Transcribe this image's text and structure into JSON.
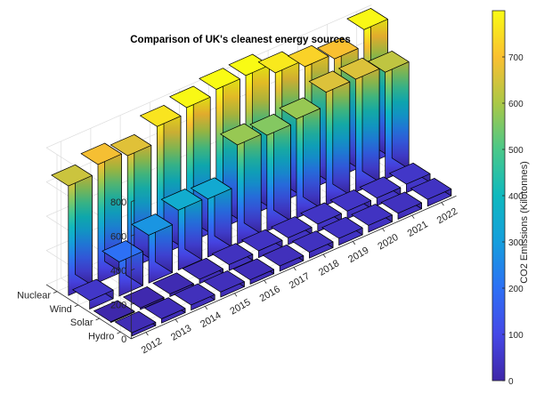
{
  "chart_data": {
    "type": "bar3",
    "title": "Comparison of UK's cleanest energy sources",
    "years": [
      "2012",
      "2013",
      "2014",
      "2015",
      "2016",
      "2017",
      "2018",
      "2019",
      "2020",
      "2021",
      "2022"
    ],
    "sources": [
      "Nuclear",
      "Wind",
      "Solar",
      "Hydro"
    ],
    "series": [
      {
        "name": "Nuclear",
        "values": [
          640,
          690,
          665,
          760,
          795,
          825,
          830,
          770,
          730,
          700,
          795
        ]
      },
      {
        "name": "Wind",
        "values": [
          50,
          200,
          280,
          350,
          340,
          580,
          560,
          580,
          660,
          660,
          625
        ]
      },
      {
        "name": "Solar",
        "values": [
          5,
          10,
          15,
          25,
          35,
          40,
          40,
          45,
          45,
          45,
          50
        ]
      },
      {
        "name": "Hydro",
        "values": [
          20,
          25,
          30,
          30,
          25,
          30,
          35,
          40,
          40,
          35,
          40
        ]
      }
    ],
    "zlim": [
      0,
      800
    ],
    "zticks": [
      "0",
      "200",
      "400",
      "600",
      "800"
    ],
    "colorbar": {
      "label": "CO2 Emissions (Kilotonnes)",
      "range": [
        0,
        800
      ],
      "ticks": [
        "0",
        "100",
        "200",
        "300",
        "400",
        "500",
        "600",
        "700"
      ],
      "colormap": "parula"
    },
    "grid": true
  }
}
